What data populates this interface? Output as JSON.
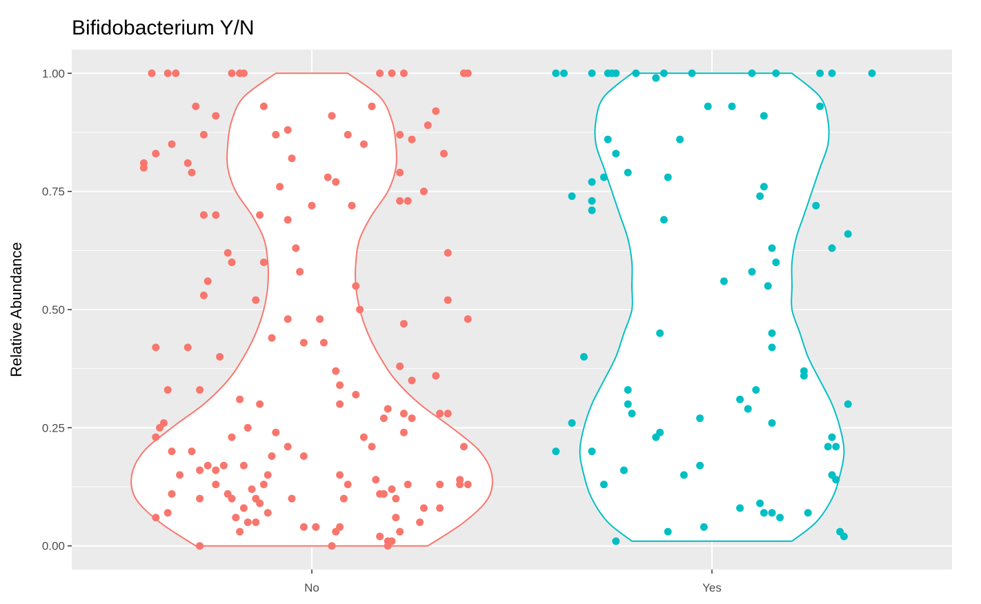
{
  "chart_data": {
    "type": "violin",
    "title": "Bifidobacterium Y/N",
    "xlabel": "",
    "ylabel": "Relative Abundance",
    "categories": [
      "No",
      "Yes"
    ],
    "ylim": [
      -0.05,
      1.05
    ],
    "yticks": [
      0,
      0.25,
      0.5,
      0.75,
      1
    ],
    "ytick_labels": [
      "0.00",
      "0.25",
      "0.50",
      "0.75",
      "1.00"
    ],
    "grid": true,
    "legend": "none",
    "series": [
      {
        "category": "No",
        "color": "#F8766D",
        "violin": {
          "y": [
            0,
            0.05,
            0.1,
            0.15,
            0.2,
            0.25,
            0.3,
            0.35,
            0.4,
            0.45,
            0.5,
            0.55,
            0.6,
            0.65,
            0.7,
            0.75,
            0.8,
            0.85,
            0.9,
            0.95,
            1.0
          ],
          "half_width": [
            0.29,
            0.38,
            0.44,
            0.45,
            0.42,
            0.35,
            0.27,
            0.21,
            0.17,
            0.14,
            0.12,
            0.11,
            0.11,
            0.12,
            0.15,
            0.19,
            0.21,
            0.21,
            0.2,
            0.17,
            0.09
          ]
        },
        "points": [
          [
            -0.4,
            1.0
          ],
          [
            -0.36,
            1.0
          ],
          [
            -0.34,
            1.0
          ],
          [
            -0.2,
            1.0
          ],
          [
            -0.18,
            1.0
          ],
          [
            -0.17,
            1.0
          ],
          [
            0.17,
            1.0
          ],
          [
            0.2,
            1.0
          ],
          [
            0.23,
            1.0
          ],
          [
            0.38,
            1.0
          ],
          [
            0.39,
            1.0
          ],
          [
            -0.29,
            0.93
          ],
          [
            -0.12,
            0.93
          ],
          [
            0.05,
            0.91
          ],
          [
            0.15,
            0.93
          ],
          [
            0.31,
            0.92
          ],
          [
            0.29,
            0.89
          ],
          [
            -0.24,
            0.91
          ],
          [
            -0.09,
            0.87
          ],
          [
            0.09,
            0.87
          ],
          [
            -0.27,
            0.87
          ],
          [
            0.22,
            0.87
          ],
          [
            -0.35,
            0.85
          ],
          [
            -0.31,
            0.81
          ],
          [
            -0.3,
            0.79
          ],
          [
            0.06,
            0.77
          ],
          [
            -0.39,
            0.83
          ],
          [
            0.13,
            0.85
          ],
          [
            -0.42,
            0.81
          ],
          [
            -0.42,
            0.8
          ],
          [
            0.22,
            0.79
          ],
          [
            0.33,
            0.83
          ],
          [
            0.25,
            0.86
          ],
          [
            -0.05,
            0.82
          ],
          [
            0.04,
            0.78
          ],
          [
            -0.06,
            0.88
          ],
          [
            -0.27,
            0.7
          ],
          [
            -0.24,
            0.7
          ],
          [
            -0.13,
            0.7
          ],
          [
            -0.08,
            0.76
          ],
          [
            0.0,
            0.72
          ],
          [
            0.1,
            0.72
          ],
          [
            0.28,
            0.75
          ],
          [
            0.24,
            0.73
          ],
          [
            0.22,
            0.73
          ],
          [
            -0.06,
            0.69
          ],
          [
            -0.04,
            0.63
          ],
          [
            -0.21,
            0.62
          ],
          [
            -0.2,
            0.6
          ],
          [
            -0.12,
            0.6
          ],
          [
            -0.26,
            0.56
          ],
          [
            -0.27,
            0.53
          ],
          [
            -0.14,
            0.52
          ],
          [
            -0.03,
            0.58
          ],
          [
            0.11,
            0.55
          ],
          [
            0.34,
            0.62
          ],
          [
            0.34,
            0.52
          ],
          [
            0.39,
            0.48
          ],
          [
            0.12,
            0.5
          ],
          [
            -0.06,
            0.48
          ],
          [
            0.02,
            0.48
          ],
          [
            0.23,
            0.47
          ],
          [
            -0.1,
            0.44
          ],
          [
            -0.02,
            0.43
          ],
          [
            0.03,
            0.43
          ],
          [
            -0.31,
            0.42
          ],
          [
            -0.39,
            0.42
          ],
          [
            -0.23,
            0.4
          ],
          [
            -0.36,
            0.33
          ],
          [
            -0.28,
            0.33
          ],
          [
            0.22,
            0.38
          ],
          [
            0.25,
            0.35
          ],
          [
            0.31,
            0.36
          ],
          [
            0.06,
            0.37
          ],
          [
            0.07,
            0.34
          ],
          [
            0.11,
            0.32
          ],
          [
            -0.18,
            0.31
          ],
          [
            -0.13,
            0.3
          ],
          [
            0.07,
            0.3
          ],
          [
            0.23,
            0.28
          ],
          [
            0.25,
            0.27
          ],
          [
            0.18,
            0.27
          ],
          [
            0.19,
            0.29
          ],
          [
            0.32,
            0.28
          ],
          [
            0.34,
            0.28
          ],
          [
            -0.16,
            0.25
          ],
          [
            -0.09,
            0.24
          ],
          [
            -0.37,
            0.26
          ],
          [
            -0.38,
            0.25
          ],
          [
            -0.39,
            0.23
          ],
          [
            -0.35,
            0.2
          ],
          [
            -0.2,
            0.23
          ],
          [
            0.15,
            0.21
          ],
          [
            0.13,
            0.23
          ],
          [
            0.23,
            0.24
          ],
          [
            -0.06,
            0.21
          ],
          [
            -0.3,
            0.2
          ],
          [
            -0.28,
            0.16
          ],
          [
            -0.26,
            0.17
          ],
          [
            -0.24,
            0.16
          ],
          [
            -0.22,
            0.17
          ],
          [
            -0.33,
            0.15
          ],
          [
            -0.17,
            0.17
          ],
          [
            -0.1,
            0.19
          ],
          [
            -0.02,
            0.19
          ],
          [
            -0.11,
            0.15
          ],
          [
            -0.12,
            0.13
          ],
          [
            -0.15,
            0.12
          ],
          [
            -0.14,
            0.1
          ],
          [
            -0.13,
            0.09
          ],
          [
            -0.11,
            0.07
          ],
          [
            -0.17,
            0.08
          ],
          [
            -0.19,
            0.06
          ],
          [
            -0.16,
            0.05
          ],
          [
            -0.14,
            0.05
          ],
          [
            -0.2,
            0.1
          ],
          [
            -0.21,
            0.11
          ],
          [
            -0.24,
            0.13
          ],
          [
            -0.28,
            0.1
          ],
          [
            -0.35,
            0.11
          ],
          [
            -0.36,
            0.07
          ],
          [
            -0.39,
            0.06
          ],
          [
            -0.18,
            0.03
          ],
          [
            0.07,
            0.15
          ],
          [
            0.09,
            0.13
          ],
          [
            0.16,
            0.14
          ],
          [
            0.18,
            0.11
          ],
          [
            0.21,
            0.1
          ],
          [
            0.24,
            0.13
          ],
          [
            0.2,
            0.12
          ],
          [
            0.17,
            0.11
          ],
          [
            0.08,
            0.1
          ],
          [
            -0.05,
            0.1
          ],
          [
            0.21,
            0.06
          ],
          [
            0.27,
            0.05
          ],
          [
            0.28,
            0.08
          ],
          [
            0.32,
            0.08
          ],
          [
            0.37,
            0.14
          ],
          [
            0.37,
            0.13
          ],
          [
            0.39,
            0.13
          ],
          [
            0.38,
            0.21
          ],
          [
            0.17,
            0.02
          ],
          [
            0.19,
            0.01
          ],
          [
            -0.02,
            0.04
          ],
          [
            0.01,
            0.04
          ],
          [
            0.06,
            0.03
          ],
          [
            0.07,
            0.04
          ],
          [
            0.05,
            0.0
          ],
          [
            -0.28,
            0.0
          ],
          [
            0.19,
            0.0
          ],
          [
            0.2,
            0.01
          ],
          [
            0.22,
            0.03
          ],
          [
            0.32,
            0.13
          ]
        ]
      },
      {
        "category": "Yes",
        "color": "#00BFC4",
        "violin": {
          "y": [
            0.01,
            0.05,
            0.1,
            0.15,
            0.2,
            0.25,
            0.3,
            0.35,
            0.4,
            0.45,
            0.5,
            0.55,
            0.6,
            0.65,
            0.7,
            0.75,
            0.8,
            0.85,
            0.9,
            0.95,
            1.0
          ],
          "half_width": [
            0.2,
            0.26,
            0.3,
            0.32,
            0.33,
            0.32,
            0.3,
            0.27,
            0.24,
            0.22,
            0.2,
            0.2,
            0.2,
            0.21,
            0.23,
            0.25,
            0.27,
            0.29,
            0.29,
            0.27,
            0.2
          ]
        },
        "points": [
          [
            -0.39,
            1.0
          ],
          [
            -0.37,
            1.0
          ],
          [
            -0.3,
            1.0
          ],
          [
            -0.26,
            1.0
          ],
          [
            -0.25,
            1.0
          ],
          [
            -0.24,
            1.0
          ],
          [
            -0.19,
            1.0
          ],
          [
            -0.12,
            1.0
          ],
          [
            -0.05,
            1.0
          ],
          [
            0.1,
            1.0
          ],
          [
            0.16,
            1.0
          ],
          [
            0.27,
            1.0
          ],
          [
            0.3,
            1.0
          ],
          [
            0.4,
            1.0
          ],
          [
            -0.14,
            0.99
          ],
          [
            -0.01,
            0.93
          ],
          [
            0.05,
            0.93
          ],
          [
            0.13,
            0.91
          ],
          [
            0.27,
            0.93
          ],
          [
            -0.08,
            0.86
          ],
          [
            -0.26,
            0.86
          ],
          [
            -0.24,
            0.83
          ],
          [
            -0.21,
            0.79
          ],
          [
            -0.11,
            0.78
          ],
          [
            -0.27,
            0.78
          ],
          [
            -0.3,
            0.77
          ],
          [
            -0.35,
            0.74
          ],
          [
            -0.3,
            0.73
          ],
          [
            -0.3,
            0.71
          ],
          [
            -0.12,
            0.69
          ],
          [
            0.12,
            0.74
          ],
          [
            0.13,
            0.76
          ],
          [
            0.26,
            0.72
          ],
          [
            0.3,
            0.63
          ],
          [
            0.34,
            0.66
          ],
          [
            0.15,
            0.63
          ],
          [
            0.16,
            0.6
          ],
          [
            0.1,
            0.58
          ],
          [
            0.14,
            0.55
          ],
          [
            0.03,
            0.56
          ],
          [
            -0.13,
            0.45
          ],
          [
            0.15,
            0.45
          ],
          [
            0.15,
            0.42
          ],
          [
            -0.32,
            0.4
          ],
          [
            0.23,
            0.37
          ],
          [
            0.23,
            0.36
          ],
          [
            0.11,
            0.33
          ],
          [
            0.07,
            0.31
          ],
          [
            0.09,
            0.29
          ],
          [
            0.34,
            0.3
          ],
          [
            -0.21,
            0.33
          ],
          [
            -0.21,
            0.3
          ],
          [
            -0.2,
            0.28
          ],
          [
            -0.03,
            0.27
          ],
          [
            0.15,
            0.26
          ],
          [
            -0.35,
            0.26
          ],
          [
            -0.14,
            0.23
          ],
          [
            -0.13,
            0.24
          ],
          [
            0.3,
            0.23
          ],
          [
            -0.39,
            0.2
          ],
          [
            -0.3,
            0.2
          ],
          [
            0.29,
            0.21
          ],
          [
            0.31,
            0.21
          ],
          [
            -0.22,
            0.16
          ],
          [
            -0.27,
            0.13
          ],
          [
            -0.07,
            0.15
          ],
          [
            -0.03,
            0.17
          ],
          [
            0.3,
            0.15
          ],
          [
            0.31,
            0.14
          ],
          [
            0.07,
            0.08
          ],
          [
            0.12,
            0.09
          ],
          [
            0.13,
            0.07
          ],
          [
            0.15,
            0.07
          ],
          [
            0.17,
            0.06
          ],
          [
            0.24,
            0.07
          ],
          [
            -0.02,
            0.04
          ],
          [
            -0.11,
            0.03
          ],
          [
            -0.24,
            0.01
          ],
          [
            0.32,
            0.03
          ],
          [
            0.33,
            0.02
          ]
        ]
      }
    ]
  }
}
